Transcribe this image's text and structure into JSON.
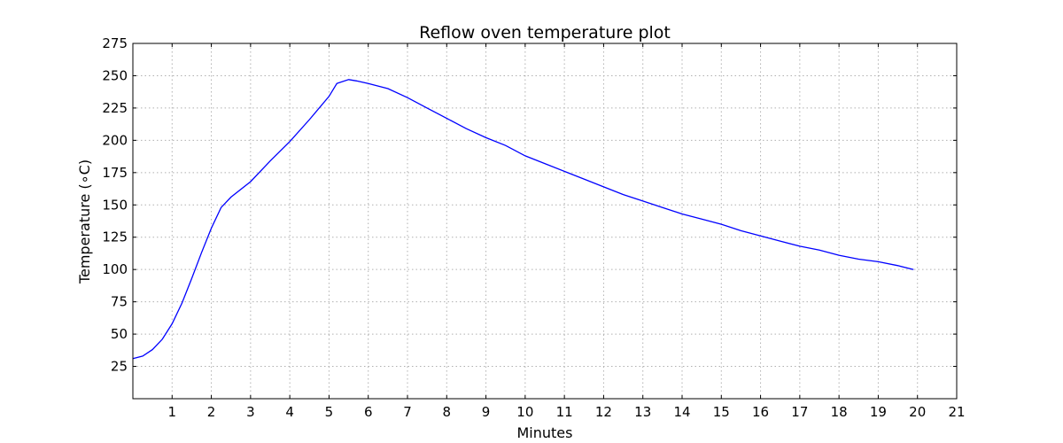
{
  "chart_data": {
    "type": "line",
    "title": "Reflow oven temperature plot",
    "xlabel": "Minutes",
    "ylabel": "Temperature (∘C)",
    "xlim": [
      0,
      21
    ],
    "ylim": [
      0,
      275
    ],
    "xticks": [
      1,
      2,
      3,
      4,
      5,
      6,
      7,
      8,
      9,
      10,
      11,
      12,
      13,
      14,
      15,
      16,
      17,
      18,
      19,
      20,
      21
    ],
    "yticks": [
      25,
      50,
      75,
      100,
      125,
      150,
      175,
      200,
      225,
      250,
      275
    ],
    "grid": true,
    "line_color": "#0000ff",
    "series": [
      {
        "x": [
          0,
          0.25,
          0.5,
          0.75,
          1.0,
          1.25,
          1.5,
          1.75,
          2.0,
          2.25,
          2.5,
          3.0,
          3.5,
          4.0,
          4.5,
          5.0,
          5.2,
          5.5,
          5.7,
          6.0,
          6.5,
          7.0,
          7.5,
          8.0,
          8.5,
          9.0,
          9.5,
          10.0,
          10.5,
          11.0,
          11.5,
          12.0,
          12.5,
          13.0,
          13.5,
          14.0,
          14.5,
          15.0,
          15.5,
          16.0,
          16.5,
          17.0,
          17.5,
          18.0,
          18.5,
          19.0,
          19.5,
          19.9
        ],
        "y": [
          31,
          33,
          38,
          46,
          58,
          74,
          93,
          113,
          132,
          148,
          156,
          168,
          184,
          199,
          216,
          234,
          244,
          247,
          246,
          244,
          240,
          233,
          225,
          217,
          209,
          202,
          196,
          188,
          182,
          176,
          170,
          164,
          158,
          153,
          148,
          143,
          139,
          135,
          130,
          126,
          122,
          118,
          115,
          111,
          108,
          106,
          103,
          100
        ]
      }
    ]
  }
}
